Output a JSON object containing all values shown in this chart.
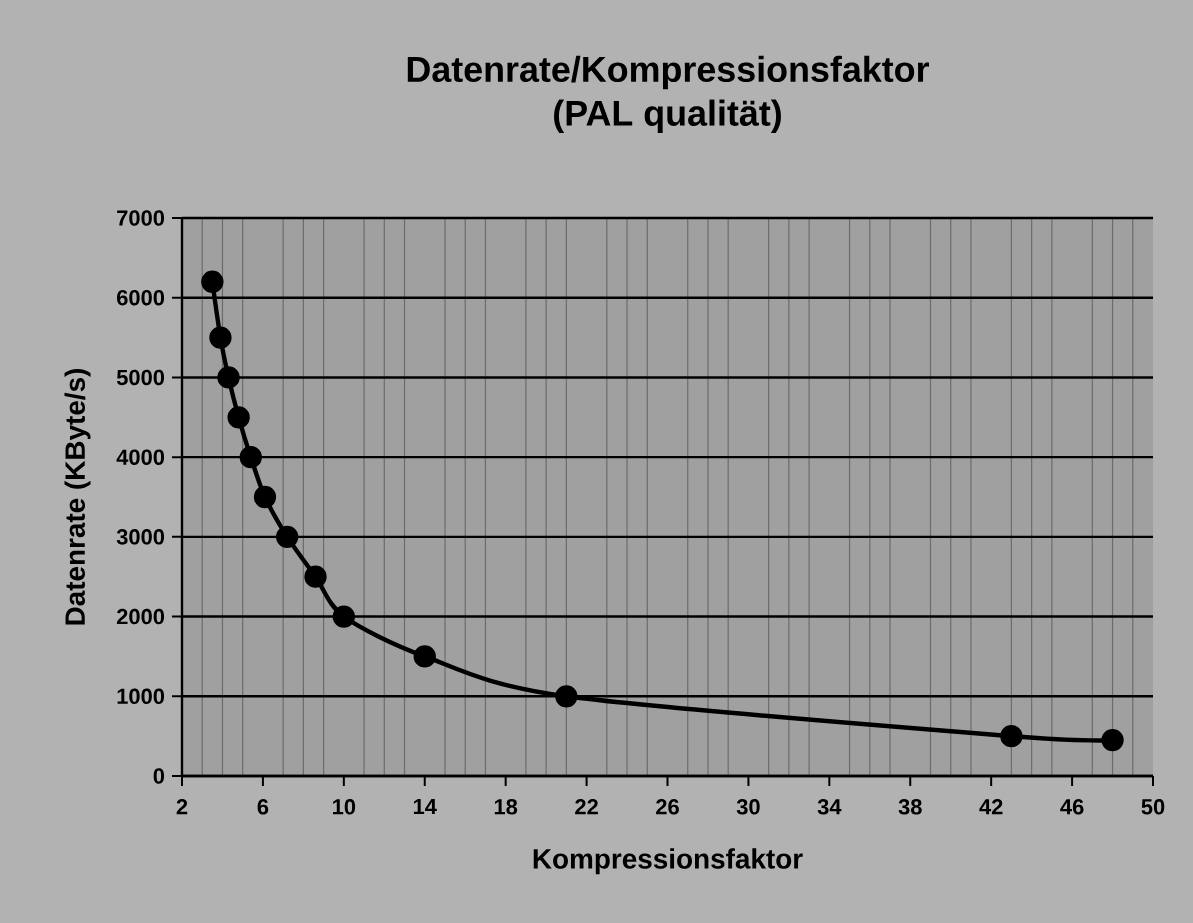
{
  "chart_data": {
    "type": "line",
    "title": "Datenrate/Kompressionsfaktor",
    "subtitle": "(PAL qualität)",
    "xlabel": "Kompressionsfaktor",
    "ylabel": "Datenrate (KByte/s)",
    "x": [
      3.5,
      3.9,
      4.3,
      4.8,
      5.4,
      6.1,
      7.2,
      8.6,
      10,
      14,
      21,
      43,
      48
    ],
    "series": [
      {
        "color": "#000000",
        "values": [
          6200,
          5500,
          5000,
          4500,
          4000,
          3500,
          3000,
          2500,
          2000,
          1500,
          1000,
          500,
          450
        ]
      }
    ],
    "xlim": [
      2,
      50
    ],
    "ylim": [
      0,
      7000
    ],
    "xticks": [
      2,
      6,
      10,
      14,
      18,
      22,
      26,
      30,
      34,
      38,
      42,
      46,
      50
    ],
    "yticks": [
      0,
      1000,
      2000,
      3000,
      4000,
      5000,
      6000,
      7000
    ],
    "grid": true,
    "marker": "circle",
    "line_style": "solid"
  }
}
